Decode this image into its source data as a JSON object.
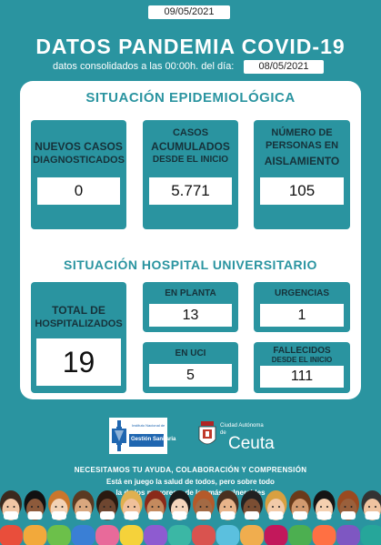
{
  "header": {
    "date": "09/05/2021",
    "title": "DATOS PANDEMIA COVID-19",
    "subtitle": "datos consolidados a las 00:00h. del día:",
    "consolidated_date": "08/05/2021"
  },
  "epidemiologica": {
    "title": "SITUACIÓN EPIDEMIOLÓGICA",
    "nuevos": {
      "label1": "NUEVOS CASOS",
      "label2": "DIAGNOSTICADOS",
      "value": "0"
    },
    "acumulados": {
      "label1": "CASOS",
      "label2": "ACUMULADOS",
      "label3": "DESDE EL INICIO",
      "value": "5.771"
    },
    "aislamiento": {
      "label1": "NÚMERO DE",
      "label2": "PERSONAS EN",
      "label3": "AISLAMIENTO",
      "value": "105"
    }
  },
  "hospital": {
    "title": "SITUACIÓN HOSPITAL UNIVERSITARIO",
    "total": {
      "label1": "TOTAL DE",
      "label2": "HOSPITALIZADOS",
      "value": "19"
    },
    "planta": {
      "label": "EN PLANTA",
      "value": "13"
    },
    "urgencias": {
      "label": "URGENCIAS",
      "value": "1"
    },
    "uci": {
      "label": "EN UCI",
      "value": "5"
    },
    "fallecidos": {
      "label1": "FALLECIDOS",
      "label2": "DESDE EL INICIO",
      "value": "111"
    }
  },
  "logos": {
    "ingesa_small": "Instituto Nacional de",
    "ingesa_line": "Gestión Sanitaria",
    "ceuta_small": "Ciudad Autónoma",
    "ceuta_de": "de",
    "ceuta_name": "Ceuta"
  },
  "footer": {
    "line1": "NECESITAMOS TU AYUDA, COLABORACIÓN  Y COMPRENSIÓN",
    "line2": "Está en juego la salud de todos, pero sobre todo",
    "line3": "la de los mayores y de los más vulnerables"
  },
  "colors": {
    "teal": "#2a94a0",
    "dark": "#16323a"
  }
}
